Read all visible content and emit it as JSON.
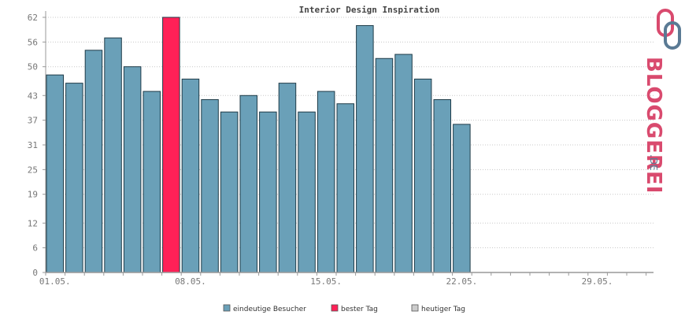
{
  "colors": {
    "bar": "#6aa0b8",
    "best": "#ff2157",
    "today": "#cccccc",
    "outline": "#1f3b48",
    "grid": "#c8c8c8",
    "axis": "#999999",
    "brand_pink": "#d94a6e",
    "brand_blue": "#5a7a94"
  },
  "brand": {
    "logo_main": "BLOGGEREI",
    "logo_tld": ".DE"
  },
  "legend": [
    {
      "label": "eindeutige Besucher",
      "color": "#6aa0b8"
    },
    {
      "label": "bester Tag",
      "color": "#ff2157"
    },
    {
      "label": "heutiger Tag",
      "color": "#cccccc"
    }
  ],
  "chart_data": {
    "type": "bar",
    "title": "Interior Design Inspiration",
    "xlabel": "",
    "ylabel": "",
    "ylim": [
      0,
      62
    ],
    "yticks": [
      0,
      6,
      12,
      19,
      25,
      31,
      37,
      43,
      50,
      56,
      62
    ],
    "x_slots": 31,
    "x_tick_labels": [
      {
        "index": 0,
        "label": "01.05."
      },
      {
        "index": 7,
        "label": "08.05."
      },
      {
        "index": 14,
        "label": "15.05."
      },
      {
        "index": 21,
        "label": "22.05."
      },
      {
        "index": 28,
        "label": "29.05."
      }
    ],
    "series": [
      {
        "name": "eindeutige Besucher",
        "values": [
          48,
          46,
          54,
          57,
          50,
          44,
          62,
          47,
          42,
          39,
          43,
          39,
          46,
          39,
          44,
          41,
          60,
          52,
          53,
          47,
          42,
          36
        ]
      }
    ],
    "best_index": 6,
    "legend_position": "bottom",
    "grid": true
  }
}
